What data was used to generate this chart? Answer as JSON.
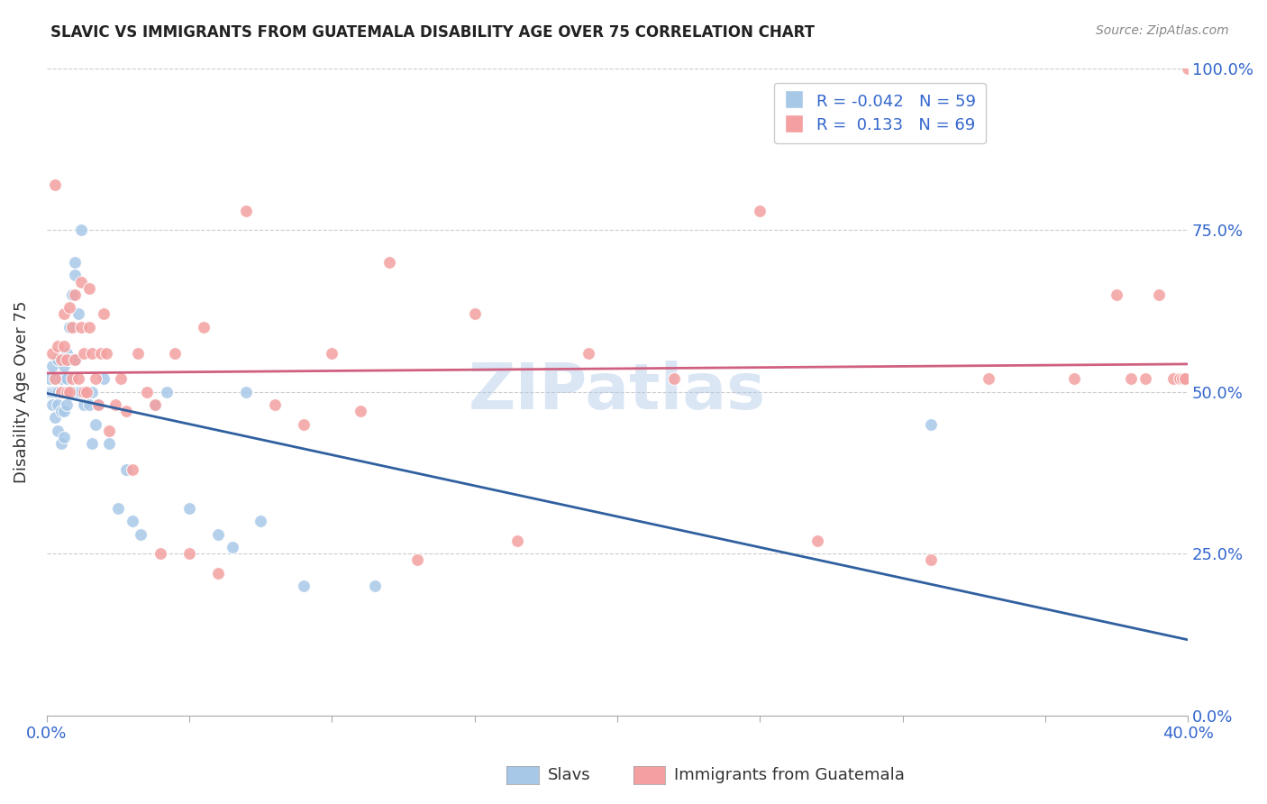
{
  "title": "SLAVIC VS IMMIGRANTS FROM GUATEMALA DISABILITY AGE OVER 75 CORRELATION CHART",
  "source": "Source: ZipAtlas.com",
  "ylabel": "Disability Age Over 75",
  "legend_label1": "Slavs",
  "legend_label2": "Immigrants from Guatemala",
  "r1": -0.042,
  "n1": 59,
  "r2": 0.133,
  "n2": 69,
  "color1": "#a8c8e8",
  "color2": "#f4a0a0",
  "trendline_color1": "#3060a0",
  "trendline_color2": "#d06080",
  "slavs_x": [
    0.001,
    0.001,
    0.002,
    0.002,
    0.002,
    0.003,
    0.003,
    0.003,
    0.004,
    0.004,
    0.004,
    0.004,
    0.005,
    0.005,
    0.005,
    0.005,
    0.006,
    0.006,
    0.006,
    0.006,
    0.007,
    0.007,
    0.007,
    0.008,
    0.008,
    0.008,
    0.009,
    0.009,
    0.01,
    0.01,
    0.01,
    0.01,
    0.011,
    0.011,
    0.012,
    0.012,
    0.013,
    0.014,
    0.015,
    0.016,
    0.016,
    0.017,
    0.018,
    0.02,
    0.022,
    0.025,
    0.028,
    0.03,
    0.033,
    0.038,
    0.042,
    0.05,
    0.06,
    0.065,
    0.07,
    0.075,
    0.09,
    0.115,
    0.31
  ],
  "slavs_y": [
    0.52,
    0.5,
    0.54,
    0.48,
    0.5,
    0.52,
    0.46,
    0.5,
    0.55,
    0.5,
    0.48,
    0.44,
    0.52,
    0.5,
    0.47,
    0.42,
    0.54,
    0.5,
    0.47,
    0.43,
    0.56,
    0.52,
    0.48,
    0.6,
    0.55,
    0.5,
    0.65,
    0.5,
    0.7,
    0.68,
    0.55,
    0.5,
    0.62,
    0.5,
    0.75,
    0.5,
    0.48,
    0.5,
    0.48,
    0.42,
    0.5,
    0.45,
    0.48,
    0.52,
    0.42,
    0.32,
    0.38,
    0.3,
    0.28,
    0.48,
    0.5,
    0.32,
    0.28,
    0.26,
    0.5,
    0.3,
    0.2,
    0.2,
    0.45
  ],
  "guatemala_x": [
    0.002,
    0.003,
    0.003,
    0.004,
    0.005,
    0.005,
    0.006,
    0.006,
    0.007,
    0.007,
    0.008,
    0.008,
    0.009,
    0.009,
    0.01,
    0.01,
    0.011,
    0.012,
    0.012,
    0.013,
    0.013,
    0.014,
    0.015,
    0.015,
    0.016,
    0.017,
    0.018,
    0.019,
    0.02,
    0.021,
    0.022,
    0.024,
    0.026,
    0.028,
    0.03,
    0.032,
    0.035,
    0.038,
    0.04,
    0.045,
    0.05,
    0.055,
    0.06,
    0.07,
    0.08,
    0.09,
    0.1,
    0.11,
    0.12,
    0.13,
    0.15,
    0.165,
    0.19,
    0.22,
    0.25,
    0.27,
    0.31,
    0.33,
    0.36,
    0.375,
    0.38,
    0.385,
    0.39,
    0.395,
    0.397,
    0.398,
    0.399,
    0.399,
    0.4
  ],
  "guatemala_y": [
    0.56,
    0.82,
    0.52,
    0.57,
    0.55,
    0.5,
    0.62,
    0.57,
    0.55,
    0.5,
    0.63,
    0.5,
    0.6,
    0.52,
    0.65,
    0.55,
    0.52,
    0.67,
    0.6,
    0.56,
    0.5,
    0.5,
    0.66,
    0.6,
    0.56,
    0.52,
    0.48,
    0.56,
    0.62,
    0.56,
    0.44,
    0.48,
    0.52,
    0.47,
    0.38,
    0.56,
    0.5,
    0.48,
    0.25,
    0.56,
    0.25,
    0.6,
    0.22,
    0.78,
    0.48,
    0.45,
    0.56,
    0.47,
    0.7,
    0.24,
    0.62,
    0.27,
    0.56,
    0.52,
    0.78,
    0.27,
    0.24,
    0.52,
    0.52,
    0.65,
    0.52,
    0.52,
    0.65,
    0.52,
    0.52,
    0.52,
    0.52,
    0.52,
    1.0
  ],
  "xlim": [
    0.0,
    0.4
  ],
  "ylim": [
    0.0,
    1.0
  ],
  "xtick_positions": [
    0.0,
    0.05,
    0.1,
    0.15,
    0.2,
    0.25,
    0.3,
    0.35,
    0.4
  ],
  "xtick_show": [
    0.0,
    0.4
  ],
  "yticks": [
    0.0,
    0.25,
    0.5,
    0.75,
    1.0
  ],
  "ytick_labels": [
    "0.0%",
    "25.0%",
    "50.0%",
    "75.0%",
    "100.0%"
  ],
  "watermark": "ZIPatlas",
  "background_color": "#ffffff",
  "grid_color": "#cccccc"
}
